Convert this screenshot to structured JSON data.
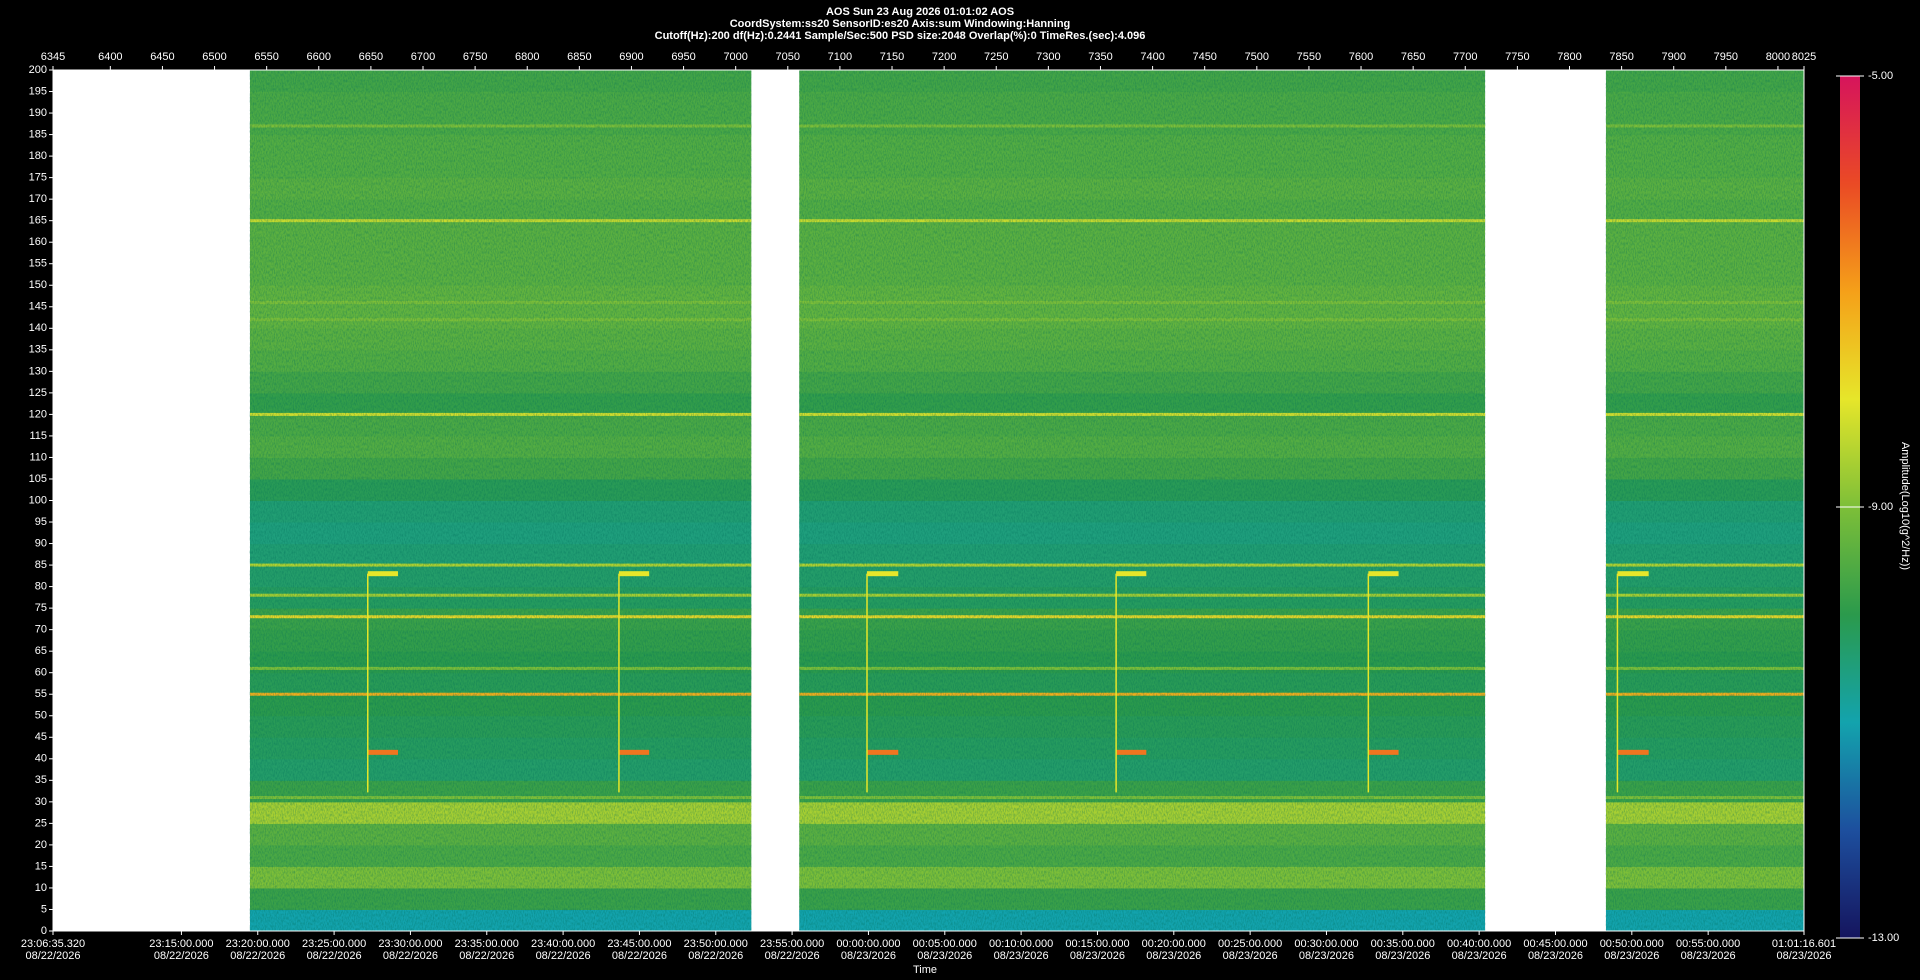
{
  "chart_data": {
    "type": "spectrogram",
    "title": "AOS  Sun 23 Aug 2026 01:01:02  AOS",
    "subtitle_lines": [
      "CoordSystem:ss20   SensorID:es20   Axis:sum   Windowing:Hanning",
      "Cutoff(Hz):200      df(Hz):0.2441      Sample/Sec:500      PSD size:2048      Overlap(%):0      TimeRes.(sec):4.096"
    ],
    "xlabel": "Time",
    "colorbar_label": "Amplitude(Log10(g^2/Hz))",
    "xlim": [
      6345,
      8025
    ],
    "xticks": [
      6345,
      6400,
      6450,
      6500,
      6550,
      6600,
      6650,
      6700,
      6750,
      6800,
      6850,
      6900,
      6950,
      7000,
      7050,
      7100,
      7150,
      7200,
      7250,
      7300,
      7350,
      7400,
      7450,
      7500,
      7550,
      7600,
      7650,
      7700,
      7750,
      7800,
      7850,
      7900,
      7950,
      8000,
      8025
    ],
    "time_ticks": [
      {
        "value": 6345,
        "label": "23:06:35.320"
      },
      {
        "value": 6468.21,
        "label": "23:15:00.000"
      },
      {
        "value": 6541.45,
        "label": "23:20:00.000"
      },
      {
        "value": 6614.7,
        "label": "23:25:00.000"
      },
      {
        "value": 6687.94,
        "label": "23:30:00.000"
      },
      {
        "value": 6761.18,
        "label": "23:35:00.000"
      },
      {
        "value": 6834.42,
        "label": "23:40:00.000"
      },
      {
        "value": 6907.66,
        "label": "23:45:00.000"
      },
      {
        "value": 6980.9,
        "label": "23:50:00.000"
      },
      {
        "value": 7054.14,
        "label": "23:55:00.000"
      },
      {
        "value": 7127.38,
        "label": "00:00:00.000"
      },
      {
        "value": 7200.63,
        "label": "00:05:00.000"
      },
      {
        "value": 7273.87,
        "label": "00:10:00.000"
      },
      {
        "value": 7347.11,
        "label": "00:15:00.000"
      },
      {
        "value": 7420.35,
        "label": "00:20:00.000"
      },
      {
        "value": 7493.59,
        "label": "00:25:00.000"
      },
      {
        "value": 7566.83,
        "label": "00:30:00.000"
      },
      {
        "value": 7640.07,
        "label": "00:35:00.000"
      },
      {
        "value": 7713.31,
        "label": "00:40:00.000"
      },
      {
        "value": 7786.56,
        "label": "00:45:00.000"
      },
      {
        "value": 7859.8,
        "label": "00:50:00.000"
      },
      {
        "value": 7933.04,
        "label": "00:55:00.000"
      },
      {
        "value": 8025,
        "label": "01:01:16.601"
      }
    ],
    "time_tick_dates": [
      "08/22/2026",
      "08/22/2026",
      "08/22/2026",
      "08/22/2026",
      "08/22/2026",
      "08/22/2026",
      "08/22/2026",
      "08/22/2026",
      "08/22/2026",
      "08/22/2026",
      "08/23/2026",
      "08/23/2026",
      "08/23/2026",
      "08/23/2026",
      "08/23/2026",
      "08/23/2026",
      "08/23/2026",
      "08/23/2026",
      "08/23/2026",
      "08/23/2026",
      "08/23/2026",
      "08/23/2026",
      "08/23/2026"
    ],
    "ylim": [
      0,
      200
    ],
    "yticks": [
      0,
      5,
      10,
      15,
      20,
      25,
      30,
      35,
      40,
      45,
      50,
      55,
      60,
      65,
      70,
      75,
      80,
      85,
      90,
      95,
      100,
      105,
      110,
      115,
      120,
      125,
      130,
      135,
      140,
      145,
      150,
      155,
      160,
      165,
      170,
      175,
      180,
      185,
      190,
      195,
      200
    ],
    "clim": [
      -13,
      -5
    ],
    "cticks": [
      {
        "value": -13,
        "label": "-13.00"
      },
      {
        "value": -9,
        "label": "-9.00"
      },
      {
        "value": -5,
        "label": "-5.00"
      }
    ],
    "colormap": [
      "#15155e",
      "#1d4f9e",
      "#13a3ad",
      "#2b9a4c",
      "#7dbf38",
      "#e6e62a",
      "#f5a019",
      "#ea4a25",
      "#d6145c"
    ],
    "segments": [
      {
        "start": 6534,
        "end": 7015
      },
      {
        "start": 7061,
        "end": 7719
      },
      {
        "start": 7835,
        "end": 8025
      }
    ],
    "band_edges": [
      0,
      5,
      10,
      15,
      20,
      25,
      30,
      35,
      40,
      45,
      50,
      55,
      60,
      65,
      70,
      75,
      80,
      85,
      90,
      95,
      100,
      105,
      110,
      115,
      120,
      125,
      130,
      135,
      140,
      145,
      150,
      155,
      160,
      165,
      170,
      175,
      180,
      185,
      190,
      195,
      200
    ],
    "amplitudes": [
      -11.0,
      -9.8,
      -9.0,
      -9.6,
      -9.4,
      -8.6,
      -9.8,
      -10.3,
      -10.2,
      -10.1,
      -10.0,
      -10.1,
      -10.0,
      -9.9,
      -9.8,
      -10.2,
      -10.3,
      -10.4,
      -10.5,
      -10.4,
      -10.1,
      -9.7,
      -9.5,
      -9.6,
      -9.9,
      -9.7,
      -9.5,
      -9.4,
      -9.3,
      -9.3,
      -9.4,
      -9.4,
      -9.4,
      -9.5,
      -9.4,
      -9.5,
      -9.5,
      -9.6,
      -9.6,
      -9.7
    ],
    "lines": [
      {
        "frequency": 187,
        "amplitude": -9.0
      },
      {
        "frequency": 165,
        "amplitude": -8.3
      },
      {
        "frequency": 146,
        "amplitude": -9.0
      },
      {
        "frequency": 142,
        "amplitude": -9.0
      },
      {
        "frequency": 120,
        "amplitude": -8.2
      },
      {
        "frequency": 85,
        "amplitude": -8.5
      },
      {
        "frequency": 78,
        "amplitude": -8.6
      },
      {
        "frequency": 73,
        "amplitude": -7.8
      },
      {
        "frequency": 61,
        "amplitude": -9.0
      },
      {
        "frequency": 55,
        "amplitude": -7.2
      },
      {
        "frequency": 31,
        "amplitude": -9.0
      }
    ],
    "events": [
      {
        "start": 6647,
        "end": 6676
      },
      {
        "start": 6888,
        "end": 6917
      },
      {
        "start": 7126,
        "end": 7156
      },
      {
        "start": 7365,
        "end": 7394
      },
      {
        "start": 7607,
        "end": 7636
      },
      {
        "start": 7846,
        "end": 7876
      }
    ],
    "event_bands": [
      {
        "frequency": 83,
        "amplitude": -8.0
      },
      {
        "frequency": 41.5,
        "amplitude": -6.5
      }
    ]
  }
}
